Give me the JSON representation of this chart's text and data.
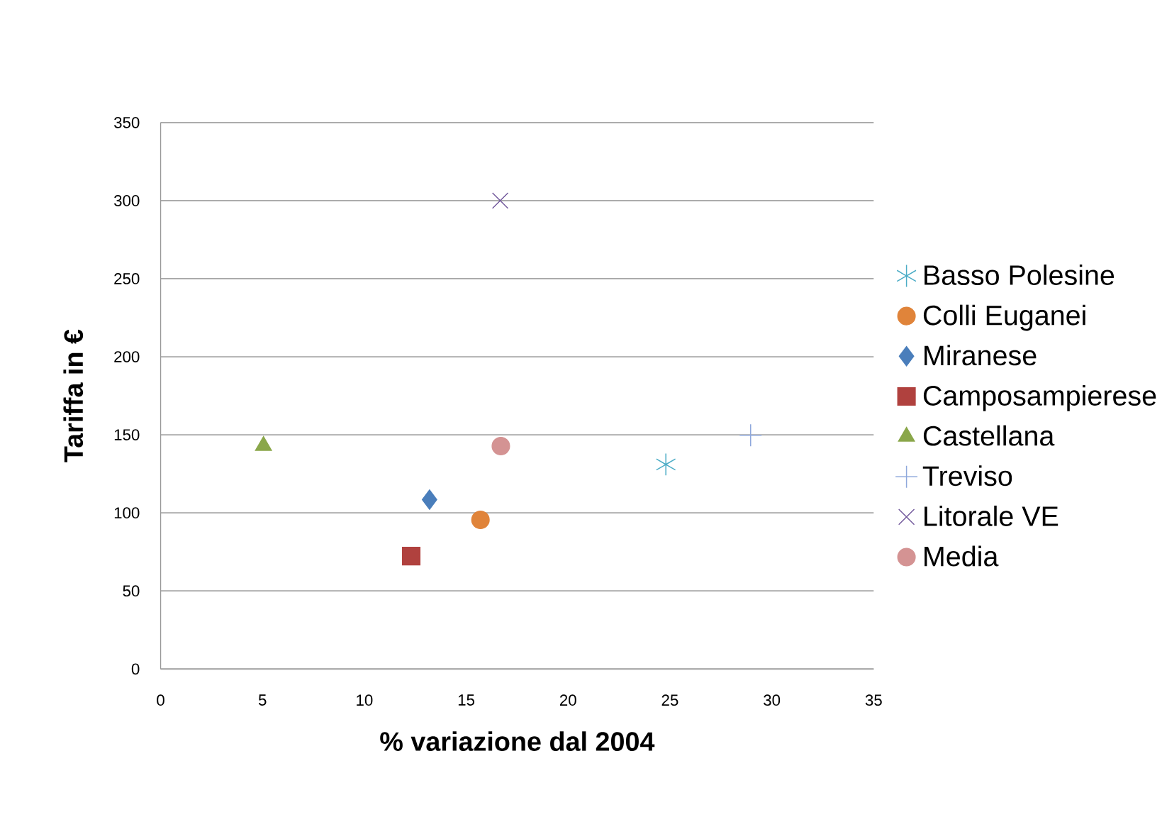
{
  "chart_data": {
    "type": "scatter",
    "xlabel": "% variazione dal 2004",
    "ylabel": "Tariffa in €",
    "xlim": [
      0,
      35
    ],
    "ylim": [
      0,
      350
    ],
    "xticks": [
      0,
      5,
      10,
      15,
      20,
      25,
      30,
      35
    ],
    "yticks": [
      0,
      50,
      100,
      150,
      200,
      250,
      300,
      350
    ],
    "grid": "y",
    "legend": "right",
    "series": [
      {
        "name": "Basso Polesine",
        "color": "#4bacc6",
        "marker": "star",
        "x": [
          24.8
        ],
        "values": [
          131
        ]
      },
      {
        "name": "Colli Euganei",
        "color": "#e0843a",
        "marker": "circle",
        "x": [
          15.7
        ],
        "values": [
          95.5
        ]
      },
      {
        "name": "Miranese",
        "color": "#4a7ebb",
        "marker": "diamond",
        "x": [
          13.2
        ],
        "values": [
          108.5
        ]
      },
      {
        "name": "Camposampierese",
        "color": "#b0413e",
        "marker": "square",
        "x": [
          12.3
        ],
        "values": [
          72.3
        ]
      },
      {
        "name": "Castellana",
        "color": "#8aa74a",
        "marker": "triangle",
        "x": [
          5.05
        ],
        "values": [
          143
        ]
      },
      {
        "name": "Treviso",
        "color": "#8ea8dc",
        "marker": "plus",
        "x": [
          28.96
        ],
        "values": [
          149.7
        ]
      },
      {
        "name": "Litorale VE",
        "color": "#6f559a",
        "marker": "cross",
        "x": [
          16.67
        ],
        "values": [
          300
        ]
      },
      {
        "name": "Media",
        "color": "#d49393",
        "marker": "circle",
        "x": [
          16.7
        ],
        "values": [
          142.8
        ]
      }
    ]
  }
}
